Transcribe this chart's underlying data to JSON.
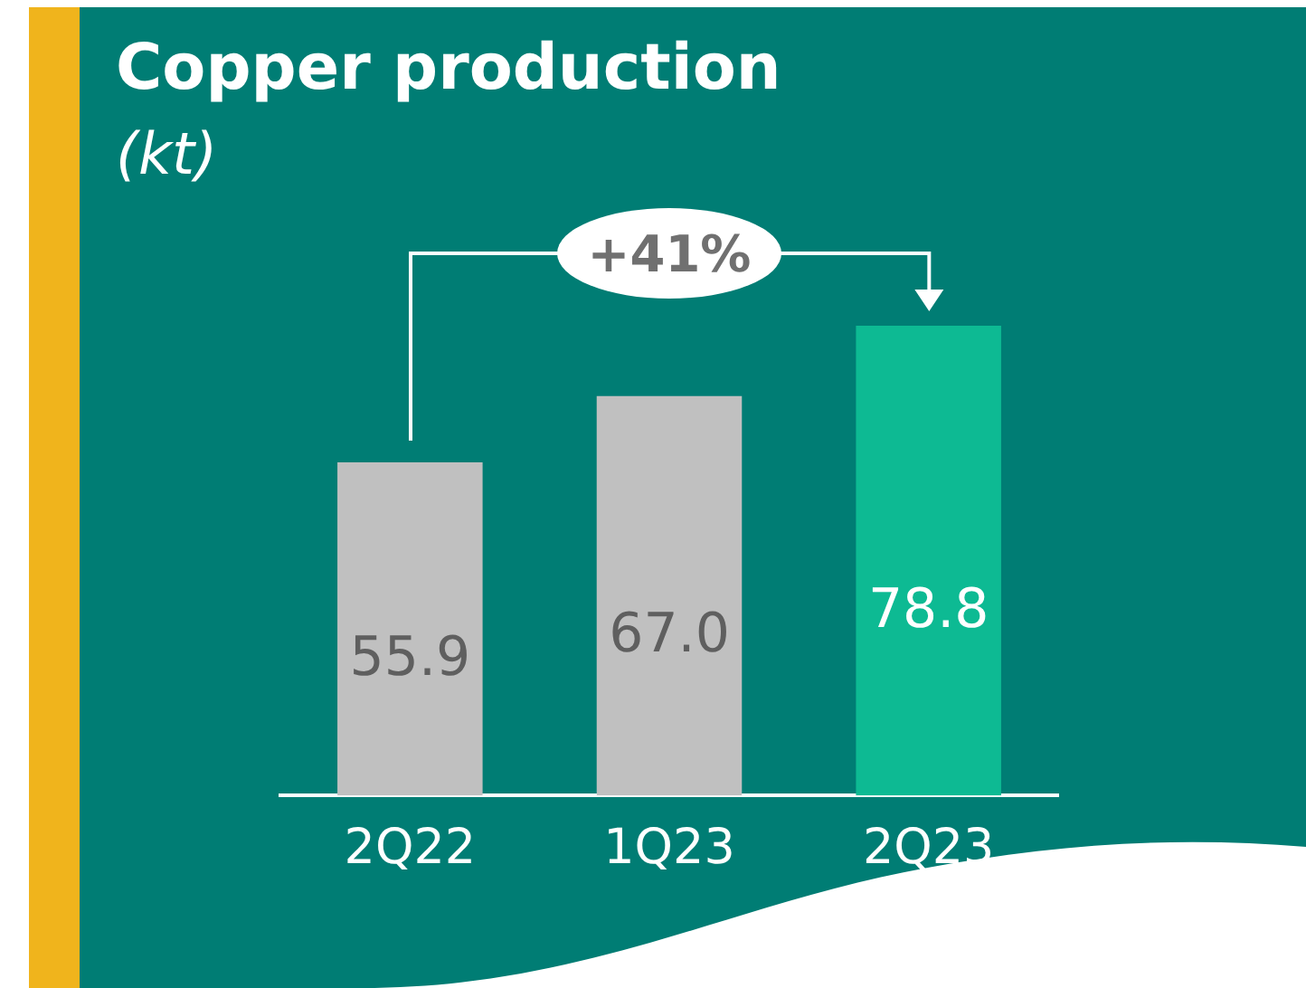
{
  "chart_data": {
    "type": "bar",
    "title": "Copper production",
    "subtitle": "(kt)",
    "categories": [
      "2Q22",
      "1Q23",
      "2Q23"
    ],
    "values": [
      55.9,
      67.0,
      78.8
    ],
    "colors": [
      "#c0c0c0",
      "#c0c0c0",
      "#0dba93"
    ],
    "value_labels": [
      "55.9",
      "67.0",
      "78.8"
    ],
    "annotations": [
      "+41%"
    ]
  }
}
